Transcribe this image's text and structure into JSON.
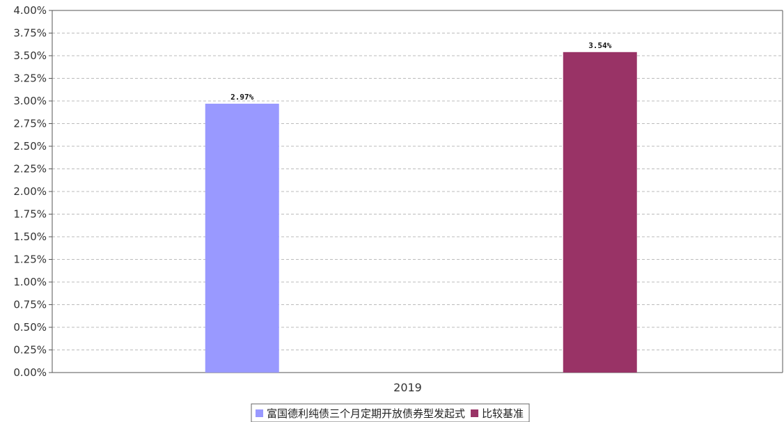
{
  "chart_data": {
    "type": "bar",
    "categories": [
      "2019"
    ],
    "series": [
      {
        "name": "富国德利纯债三个月定期开放债券型发起式",
        "values": [
          2.97
        ],
        "color": "#9999ff",
        "label": "2.97%"
      },
      {
        "name": "比较基准",
        "values": [
          3.54
        ],
        "color": "#993366",
        "label": "3.54%"
      }
    ],
    "title": "",
    "xlabel": "",
    "ylabel": "",
    "ylim": [
      0,
      4
    ],
    "ytick_step": 0.25,
    "ytick_labels": [
      "0.00%",
      "0.25%",
      "0.50%",
      "0.75%",
      "1.00%",
      "1.25%",
      "1.50%",
      "1.75%",
      "2.00%",
      "2.25%",
      "2.50%",
      "2.75%",
      "3.00%",
      "3.25%",
      "3.50%",
      "3.75%",
      "4.00%"
    ],
    "grid": true,
    "legend_position": "bottom-center"
  }
}
